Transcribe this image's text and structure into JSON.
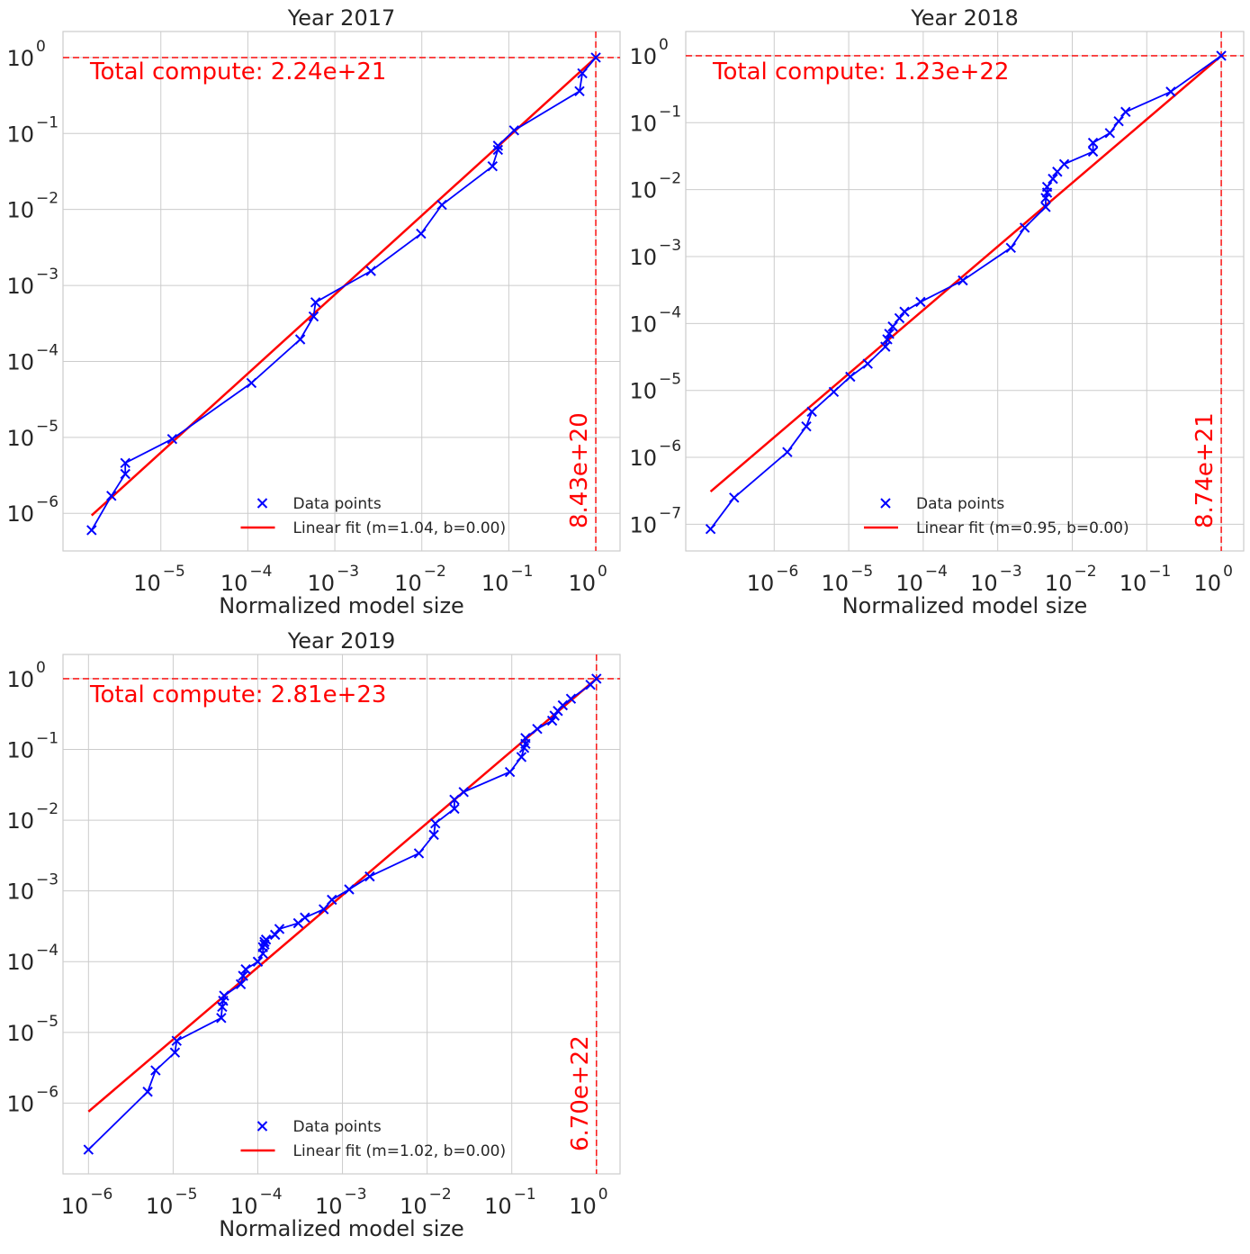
{
  "figure": {
    "colors": {
      "data": "#0000ff",
      "fit": "#ff0000",
      "ref": "#ff0000",
      "grid": "#cccccc",
      "axis": "#cccccc",
      "text": "#262626"
    }
  },
  "chart_data": [
    {
      "type": "scatter",
      "scale": "log-log",
      "title": "Year 2017",
      "xlabel": "Normalized model size",
      "ylabel": "",
      "xlim": [
        7.5e-07,
        1.9
      ],
      "ylim": [
        3.2e-07,
        2.2
      ],
      "xticks": [
        {
          "value": 1e-05,
          "exp": "−5"
        },
        {
          "value": 0.0001,
          "exp": "−4"
        },
        {
          "value": 0.001,
          "exp": "−3"
        },
        {
          "value": 0.01,
          "exp": "−2"
        },
        {
          "value": 0.1,
          "exp": "−1"
        },
        {
          "value": 1,
          "exp": "0"
        }
      ],
      "yticks": [
        {
          "value": 1e-06,
          "exp": "−6"
        },
        {
          "value": 1e-05,
          "exp": "−5"
        },
        {
          "value": 0.0001,
          "exp": "−4"
        },
        {
          "value": 0.001,
          "exp": "−3"
        },
        {
          "value": 0.01,
          "exp": "−2"
        },
        {
          "value": 0.1,
          "exp": "−1"
        },
        {
          "value": 1,
          "exp": "0"
        }
      ],
      "tick_base": "10",
      "grid": true,
      "series": [
        {
          "name": "Data points",
          "x": [
            1.6e-06,
            2.7e-06,
            3.9e-06,
            3.9e-06,
            1.35e-05,
            0.00011,
            0.0004,
            0.00057,
            0.0006,
            0.0026,
            0.0098,
            0.017,
            0.065,
            0.075,
            0.075,
            0.115,
            0.65,
            0.7,
            1.0
          ],
          "y": [
            6e-07,
            1.7e-06,
            3.3e-06,
            4.6e-06,
            9.5e-06,
            5.2e-05,
            0.000195,
            0.00039,
            0.0006,
            0.00155,
            0.0048,
            0.0115,
            0.037,
            0.061,
            0.069,
            0.11,
            0.36,
            0.62,
            1.0
          ]
        },
        {
          "name": "Linear fit (m=1.04, b=0.00)",
          "slope": 1.04,
          "intercept": 0.0,
          "x_range": [
            1.6e-06,
            1.0
          ]
        }
      ],
      "legend": [
        "Data points",
        "Linear fit (m=1.04, b=0.00)"
      ],
      "legend_position": "lower-center",
      "ref_lines": {
        "x": 1.0,
        "y": 1.0
      },
      "annotations": {
        "total_compute": "Total compute: 2.24e+21",
        "vertical_label": "8.43e+20"
      }
    },
    {
      "type": "scatter",
      "scale": "log-log",
      "title": "Year 2018",
      "xlabel": "Normalized model size",
      "ylabel": "",
      "xlim": [
        6.5e-08,
        2.0
      ],
      "ylim": [
        4e-08,
        2.3
      ],
      "xticks": [
        {
          "value": 1e-06,
          "exp": "−6"
        },
        {
          "value": 1e-05,
          "exp": "−5"
        },
        {
          "value": 0.0001,
          "exp": "−4"
        },
        {
          "value": 0.001,
          "exp": "−3"
        },
        {
          "value": 0.01,
          "exp": "−2"
        },
        {
          "value": 0.1,
          "exp": "−1"
        },
        {
          "value": 1,
          "exp": "0"
        }
      ],
      "yticks": [
        {
          "value": 1e-07,
          "exp": "−7"
        },
        {
          "value": 1e-06,
          "exp": "−6"
        },
        {
          "value": 1e-05,
          "exp": "−5"
        },
        {
          "value": 0.0001,
          "exp": "−4"
        },
        {
          "value": 0.001,
          "exp": "−3"
        },
        {
          "value": 0.01,
          "exp": "−2"
        },
        {
          "value": 0.1,
          "exp": "−1"
        },
        {
          "value": 1,
          "exp": "0"
        }
      ],
      "tick_base": "10",
      "grid": true,
      "series": [
        {
          "name": "Data points",
          "x": [
            1.4e-07,
            2.9e-07,
            1.5e-06,
            2.7e-06,
            3.2e-06,
            6.3e-06,
            1.05e-05,
            1.8e-05,
            3.1e-05,
            3.3e-05,
            3.5e-05,
            3.9e-05,
            4.8e-05,
            5.6e-05,
            9.2e-05,
            0.00034,
            0.0015,
            0.0023,
            0.0044,
            0.0044,
            0.0046,
            0.0046,
            0.0055,
            0.0063,
            0.0078,
            0.019,
            0.019,
            0.032,
            0.042,
            0.052,
            0.21,
            1.0
          ],
          "y": [
            8.5e-08,
            2.5e-07,
            1.2e-06,
            2.9e-06,
            4.8e-06,
            9.5e-06,
            1.6e-05,
            2.5e-05,
            4.5e-05,
            5.8e-05,
            7e-05,
            9e-05,
            0.00012,
            0.00015,
            0.00021,
            0.00044,
            0.00135,
            0.0027,
            0.0055,
            0.0075,
            0.009,
            0.011,
            0.0145,
            0.0185,
            0.024,
            0.037,
            0.05,
            0.07,
            0.105,
            0.145,
            0.29,
            1.0
          ]
        },
        {
          "name": "Linear fit (m=0.95, b=0.00)",
          "slope": 0.95,
          "intercept": 0.0,
          "x_range": [
            1.4e-07,
            1.0
          ]
        }
      ],
      "legend": [
        "Data points",
        "Linear fit (m=0.95, b=0.00)"
      ],
      "legend_position": "lower-center",
      "ref_lines": {
        "x": 1.0,
        "y": 1.0
      },
      "annotations": {
        "total_compute": "Total compute: 1.23e+22",
        "vertical_label": "8.74e+21"
      }
    },
    {
      "type": "scatter",
      "scale": "log-log",
      "title": "Year 2019",
      "xlabel": "Normalized model size",
      "ylabel": "",
      "xlim": [
        5e-07,
        1.9
      ],
      "ylim": [
        1e-07,
        2.2
      ],
      "xticks": [
        {
          "value": 1e-06,
          "exp": "−6"
        },
        {
          "value": 1e-05,
          "exp": "−5"
        },
        {
          "value": 0.0001,
          "exp": "−4"
        },
        {
          "value": 0.001,
          "exp": "−3"
        },
        {
          "value": 0.01,
          "exp": "−2"
        },
        {
          "value": 0.1,
          "exp": "−1"
        },
        {
          "value": 1,
          "exp": "0"
        }
      ],
      "yticks": [
        {
          "value": 1e-06,
          "exp": "−6"
        },
        {
          "value": 1e-05,
          "exp": "−5"
        },
        {
          "value": 0.0001,
          "exp": "−4"
        },
        {
          "value": 0.001,
          "exp": "−3"
        },
        {
          "value": 0.01,
          "exp": "−2"
        },
        {
          "value": 0.1,
          "exp": "−1"
        },
        {
          "value": 1,
          "exp": "0"
        }
      ],
      "tick_base": "10",
      "grid": true,
      "series": [
        {
          "name": "Data points",
          "x": [
            1e-06,
            5e-06,
            6.2e-06,
            1.05e-05,
            1.1e-05,
            3.7e-05,
            3.8e-05,
            3.9e-05,
            4e-05,
            6.3e-05,
            6.7e-05,
            7.2e-05,
            0.0001,
            0.000115,
            0.000115,
            0.00012,
            0.00012,
            0.000125,
            0.00016,
            0.00018,
            0.0003,
            0.00036,
            0.0006,
            0.00075,
            0.0012,
            0.0021,
            0.008,
            0.012,
            0.0125,
            0.021,
            0.021,
            0.027,
            0.095,
            0.13,
            0.14,
            0.145,
            0.145,
            0.2,
            0.3,
            0.32,
            0.35,
            0.4,
            0.5,
            0.85,
            1.0
          ],
          "y": [
            2.2e-07,
            1.45e-06,
            2.9e-06,
            5.2e-06,
            7.6e-06,
            1.6e-05,
            2.3e-05,
            2.8e-05,
            3.3e-05,
            4.8e-05,
            6.3e-05,
            7.8e-05,
            0.0001,
            0.00013,
            0.00016,
            0.000175,
            0.00019,
            0.000205,
            0.00024,
            0.00029,
            0.00035,
            0.00042,
            0.00055,
            0.00075,
            0.00105,
            0.0016,
            0.0034,
            0.0062,
            0.009,
            0.0145,
            0.0195,
            0.025,
            0.048,
            0.078,
            0.105,
            0.12,
            0.145,
            0.195,
            0.255,
            0.3,
            0.35,
            0.42,
            0.52,
            0.82,
            1.0
          ]
        },
        {
          "name": "Linear fit (m=1.02, b=0.00)",
          "slope": 1.02,
          "intercept": 0.0,
          "x_range": [
            1e-06,
            1.0
          ]
        }
      ],
      "legend": [
        "Data points",
        "Linear fit (m=1.02, b=0.00)"
      ],
      "legend_position": "lower-center",
      "ref_lines": {
        "x": 1.0,
        "y": 1.0
      },
      "annotations": {
        "total_compute": "Total compute: 2.81e+23",
        "vertical_label": "6.70e+22"
      }
    }
  ]
}
